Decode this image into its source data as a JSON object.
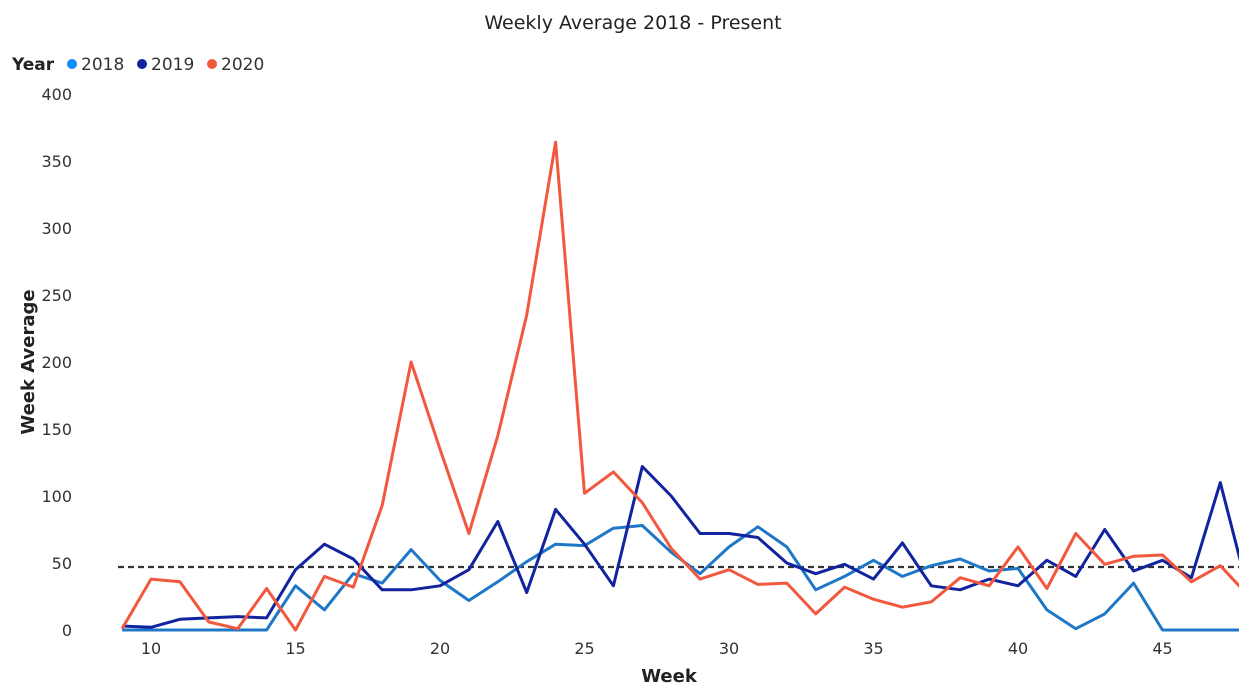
{
  "chart_data": {
    "type": "line",
    "title": "Weekly Average 2018 - Present",
    "xlabel": "Week",
    "ylabel": "Week Average",
    "legend_title": "Year",
    "legend_position": "top-left",
    "xlim": [
      8.8,
      47.8
    ],
    "ylim": [
      0,
      400
    ],
    "xticks": [
      10,
      15,
      20,
      25,
      30,
      35,
      40,
      45
    ],
    "yticks": [
      0,
      50,
      100,
      150,
      200,
      250,
      300,
      350,
      400
    ],
    "grid": false,
    "reference_line": {
      "y": 47,
      "style": "dashed",
      "color": "#333333"
    },
    "x": [
      9,
      10,
      11,
      12,
      13,
      14,
      15,
      16,
      17,
      18,
      19,
      20,
      21,
      22,
      23,
      24,
      25,
      26,
      27,
      28,
      29,
      30,
      31,
      32,
      33,
      34,
      35,
      36,
      37,
      38,
      39,
      40,
      41,
      42,
      43,
      44,
      45,
      46,
      47,
      48
    ],
    "series": [
      {
        "name": "2018",
        "color": "#118DFF",
        "line_color": "#1F77C8",
        "values": [
          0,
          0,
          0,
          0,
          0,
          0,
          33,
          15,
          42,
          35,
          60,
          37,
          22,
          36,
          51,
          64,
          63,
          76,
          78,
          58,
          42,
          62,
          77,
          62,
          30,
          40,
          52,
          40,
          48,
          53,
          44,
          46,
          15,
          1,
          12,
          35,
          0,
          0,
          0,
          0
        ]
      },
      {
        "name": "2019",
        "color": "#12239E",
        "values": [
          3,
          2,
          8,
          9,
          10,
          9,
          45,
          64,
          53,
          30,
          30,
          33,
          45,
          81,
          28,
          90,
          64,
          33,
          122,
          100,
          72,
          72,
          69,
          50,
          42,
          49,
          38,
          65,
          33,
          30,
          38,
          33,
          52,
          40,
          75,
          44,
          52,
          39,
          110,
          26
        ]
      },
      {
        "name": "2020",
        "color": "#F2583E",
        "values": [
          1,
          38,
          36,
          6,
          1,
          31,
          0,
          40,
          32,
          93,
          200,
          135,
          72,
          145,
          235,
          364,
          102,
          118,
          95,
          61,
          38,
          45,
          34,
          35,
          12,
          32,
          23,
          17,
          21,
          39,
          33,
          62,
          31,
          72,
          49,
          55,
          56,
          36,
          48,
          25
        ]
      }
    ]
  }
}
